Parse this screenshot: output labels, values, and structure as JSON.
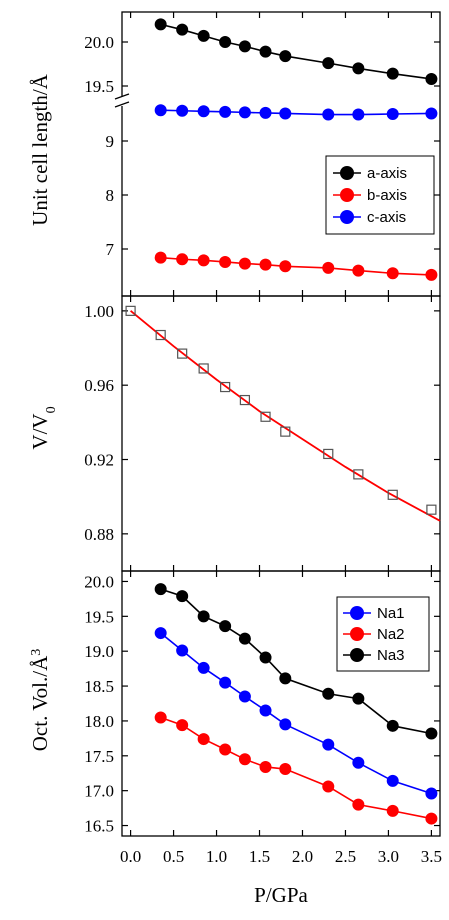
{
  "xlabel": "P/GPa",
  "x_ticks": [
    "0.0",
    "0.5",
    "1.0",
    "1.5",
    "2.0",
    "2.5",
    "3.0",
    "3.5"
  ],
  "chart_data": [
    {
      "type": "line",
      "ylabel": "Unit cell length/Å",
      "xlim": [
        -0.1,
        3.6
      ],
      "broken_axis": true,
      "y_ticks_upper": [
        "20.0",
        "19.5"
      ],
      "y_ticks_lower": [
        "9",
        "8",
        "7"
      ],
      "legend_position": "right",
      "series": [
        {
          "name": "a-axis",
          "color": "#000000",
          "x": [
            0.35,
            0.6,
            0.85,
            1.1,
            1.33,
            1.57,
            1.8,
            2.3,
            2.65,
            3.05,
            3.5
          ],
          "y": [
            20.2,
            20.14,
            20.07,
            20.0,
            19.95,
            19.89,
            19.84,
            19.76,
            19.7,
            19.64,
            19.58
          ]
        },
        {
          "name": "b-axis",
          "color": "#ff0000",
          "x": [
            0.35,
            0.6,
            0.85,
            1.1,
            1.33,
            1.57,
            1.8,
            2.3,
            2.65,
            3.05,
            3.5
          ],
          "y": [
            6.84,
            6.81,
            6.79,
            6.76,
            6.73,
            6.71,
            6.68,
            6.65,
            6.6,
            6.55,
            6.52
          ]
        },
        {
          "name": "c-axis",
          "color": "#0000ff",
          "x": [
            0.35,
            0.6,
            0.85,
            1.1,
            1.33,
            1.57,
            1.8,
            2.3,
            2.65,
            3.05,
            3.5
          ],
          "y": [
            9.57,
            9.56,
            9.55,
            9.54,
            9.53,
            9.52,
            9.51,
            9.49,
            9.49,
            9.5,
            9.51
          ]
        }
      ]
    },
    {
      "type": "scatter",
      "ylabel": "V/V",
      "ylabel_sub": "0",
      "xlim": [
        -0.1,
        3.6
      ],
      "ylim": [
        0.86,
        1.008
      ],
      "y_ticks": [
        "1.00",
        "0.96",
        "0.92",
        "0.88"
      ],
      "y_tick_values": [
        1.0,
        0.96,
        0.92,
        0.88
      ],
      "points": {
        "x": [
          0.0,
          0.35,
          0.6,
          0.85,
          1.1,
          1.33,
          1.57,
          1.8,
          2.3,
          2.65,
          3.05,
          3.5
        ],
        "y": [
          1.0,
          0.987,
          0.977,
          0.969,
          0.959,
          0.952,
          0.943,
          0.935,
          0.923,
          0.912,
          0.901,
          0.893
        ],
        "marker": "open-square",
        "color": "#555555"
      },
      "fit": {
        "color": "#ff0000",
        "x": [
          0.0,
          0.5,
          1.0,
          1.5,
          2.0,
          2.5,
          3.0,
          3.6
        ],
        "y": [
          1.0,
          0.981,
          0.963,
          0.946,
          0.931,
          0.916,
          0.902,
          0.887
        ]
      }
    },
    {
      "type": "line",
      "ylabel": "Oct. Vol./Å",
      "ylabel_sup": "3",
      "xlim": [
        -0.1,
        3.6
      ],
      "ylim": [
        16.35,
        20.15
      ],
      "y_ticks": [
        "20.0",
        "19.5",
        "19.0",
        "18.5",
        "18.0",
        "17.5",
        "17.0",
        "16.5"
      ],
      "y_tick_values": [
        20.0,
        19.5,
        19.0,
        18.5,
        18.0,
        17.5,
        17.0,
        16.5
      ],
      "legend_position": "top-right",
      "series": [
        {
          "name": "Na1",
          "color": "#0000ff",
          "x": [
            0.35,
            0.6,
            0.85,
            1.1,
            1.33,
            1.57,
            1.8,
            2.3,
            2.65,
            3.05,
            3.5
          ],
          "y": [
            19.26,
            19.01,
            18.76,
            18.55,
            18.35,
            18.15,
            17.95,
            17.66,
            17.4,
            17.14,
            16.96
          ]
        },
        {
          "name": "Na2",
          "color": "#ff0000",
          "x": [
            0.35,
            0.6,
            0.85,
            1.1,
            1.33,
            1.57,
            1.8,
            2.3,
            2.65,
            3.05,
            3.5
          ],
          "y": [
            18.05,
            17.94,
            17.74,
            17.59,
            17.45,
            17.34,
            17.31,
            17.06,
            16.8,
            16.71,
            16.6
          ]
        },
        {
          "name": "Na3",
          "color": "#000000",
          "x": [
            0.35,
            0.6,
            0.85,
            1.1,
            1.33,
            1.57,
            1.8,
            2.3,
            2.65,
            3.05,
            3.5
          ],
          "y": [
            19.89,
            19.79,
            19.5,
            19.36,
            19.18,
            18.91,
            18.61,
            18.39,
            18.32,
            17.93,
            17.82
          ]
        }
      ]
    }
  ]
}
